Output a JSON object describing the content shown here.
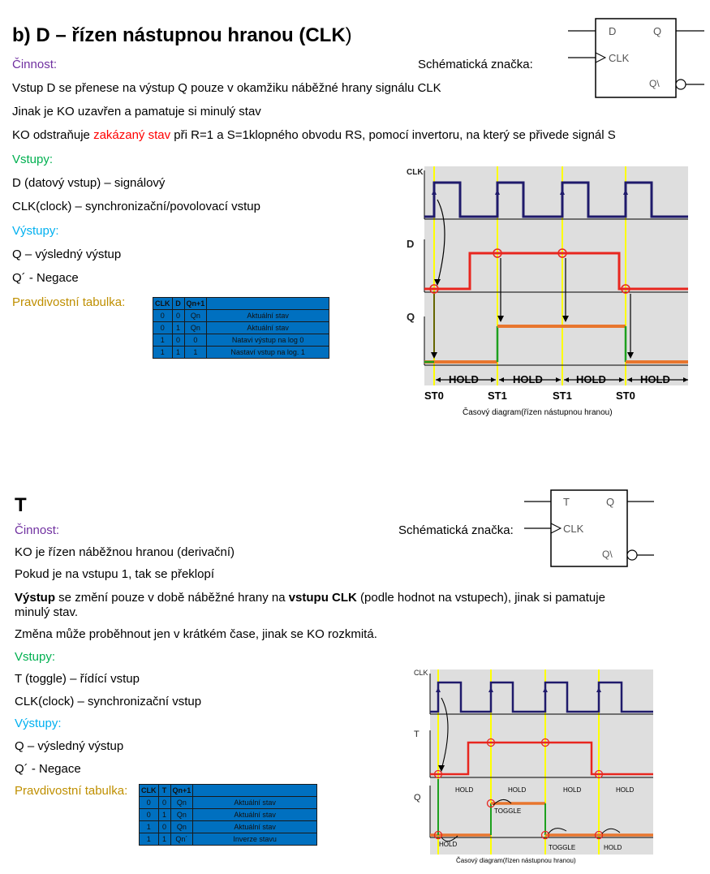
{
  "d": {
    "title": "b) D – řízen nástupnou hranou (CLK",
    "title_paren": ")",
    "cinnost_label": "Činnost:",
    "schematic_label": "Schématická značka:",
    "lines": [
      "Vstup D se přenese na výstup Q pouze v okamžiku náběžné hrany signálu CLK",
      "Jinak je KO uzavřen a pamatuje si minulý stav"
    ],
    "line3_before": "KO odstraňuje ",
    "line3_red": "zakázaný stav",
    "line3_after": " při R=1 a S=1klopného obvodu RS, pomocí invertoru, na který se přivede signál S",
    "vstupy_label": "Vstupy:",
    "vstupy": [
      "D (datový vstup) – signálový",
      "CLK(clock) – synchronizační/povolovací vstup"
    ],
    "vystupy_label": "Výstupy:",
    "vystupy": [
      "Q – výsledný výstup",
      "Q´ - Negace"
    ],
    "table_label": "Pravdivostní tabulka:",
    "table_headers": [
      "CLK",
      "D",
      "Qn+1",
      ""
    ],
    "table_rows": [
      [
        "0",
        "0",
        "Qn",
        "Aktuální stav"
      ],
      [
        "0",
        "1",
        "Qn",
        "Aktuální stav"
      ],
      [
        "1",
        "0",
        "0",
        "Natavi výstup na log 0"
      ],
      [
        "1",
        "1",
        "1",
        "Nastaví vstup na log. 1"
      ]
    ],
    "symbol": {
      "in1": "D",
      "in2": "CLK",
      "out1": "Q",
      "out2": "Q\\"
    },
    "diagram": {
      "sig_clk": "CLK",
      "sig_in": "D",
      "sig_q": "Q",
      "phases": [
        "HOLD",
        "HOLD",
        "HOLD",
        "HOLD"
      ],
      "states": [
        "ST0",
        "ST1",
        "ST1",
        "ST0"
      ],
      "caption": "Časový diagram(řízen nástupnou hranou)"
    }
  },
  "t": {
    "title": "T",
    "cinnost_label": "Činnost:",
    "schematic_label": "Schématická značka:",
    "lines": [
      "KO je řízen náběžnou hranou (derivační)",
      "Pokud je na vstupu 1, tak se překlopí"
    ],
    "line3_bold1": "Výstup",
    "line3_mid": " se změní pouze v době náběžné hrany na ",
    "line3_bold2": "vstupu CLK",
    "line3_after": " (podle hodnot na vstupech), jinak si pamatuje",
    "line3_cont": "minulý stav.",
    "line4": "Změna může proběhnout jen v krátkém čase, jinak se KO rozkmitá.",
    "vstupy_label": "Vstupy:",
    "vstupy": [
      "T (toggle) – řídící vstup",
      "CLK(clock) – synchronizační vstup"
    ],
    "vystupy_label": "Výstupy:",
    "vystupy": [
      "Q – výsledný výstup",
      "Q´ - Negace"
    ],
    "table_label": "Pravdivostní tabulka:",
    "table_headers": [
      "CLK",
      "T",
      "Qn+1",
      ""
    ],
    "table_rows": [
      [
        "0",
        "0",
        "Qn",
        "Aktuální stav"
      ],
      [
        "0",
        "1",
        "Qn",
        "Aktuální stav"
      ],
      [
        "1",
        "0",
        "Qn",
        "Aktuální stav"
      ],
      [
        "1",
        "1",
        "Qn´",
        "Inverze stavu"
      ]
    ],
    "symbol": {
      "in1": "T",
      "in2": "CLK",
      "out1": "Q",
      "out2": "Q\\"
    },
    "diagram": {
      "sig_clk": "CLK",
      "sig_in": "T",
      "sig_q": "Q",
      "top_labels": [
        "HOLD",
        "HOLD",
        "HOLD",
        "HOLD"
      ],
      "bottom_labels": [
        "HOLD",
        "TOGGLE",
        "TOGGLE",
        "HOLD"
      ],
      "caption": "Časový diagram(řízen nástupnou hranou)"
    }
  },
  "colors": {
    "clk": "#1F1A6B",
    "input": "#E8261F",
    "q": "#E8762E",
    "marker": "#FFFF00",
    "edge": "#1DA01D",
    "bg": "#DEDEDE",
    "table": "#0070C0"
  }
}
